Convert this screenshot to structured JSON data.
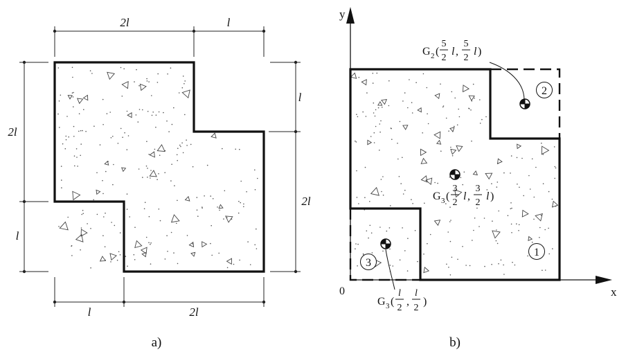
{
  "figure_a": {
    "caption": "a)",
    "top_dims": [
      "2l",
      "l"
    ],
    "bottom_dims": [
      "l",
      "2l"
    ],
    "left_dims": [
      "2l",
      "l"
    ],
    "right_dims": [
      "l",
      "2l"
    ]
  },
  "figure_b": {
    "caption": "b)",
    "axis_x": "x",
    "axis_y": "y",
    "origin": "0",
    "region_labels": [
      "1",
      "2",
      "3"
    ],
    "points": {
      "g2": {
        "name": "G",
        "sub": "2",
        "x_num": "5",
        "x_den": "2",
        "x_var": "l",
        "y_num": "5",
        "y_den": "2",
        "y_var": "l"
      },
      "g3_main": {
        "name": "G",
        "sub": "3",
        "x_num": "3",
        "x_den": "2",
        "x_var": "l",
        "y_num": "3",
        "y_den": "2",
        "y_var": "l"
      },
      "g3_small": {
        "name": "G",
        "sub": "3",
        "x_num": "l",
        "x_den": "2",
        "y_num": "l",
        "y_den": "2"
      }
    }
  }
}
